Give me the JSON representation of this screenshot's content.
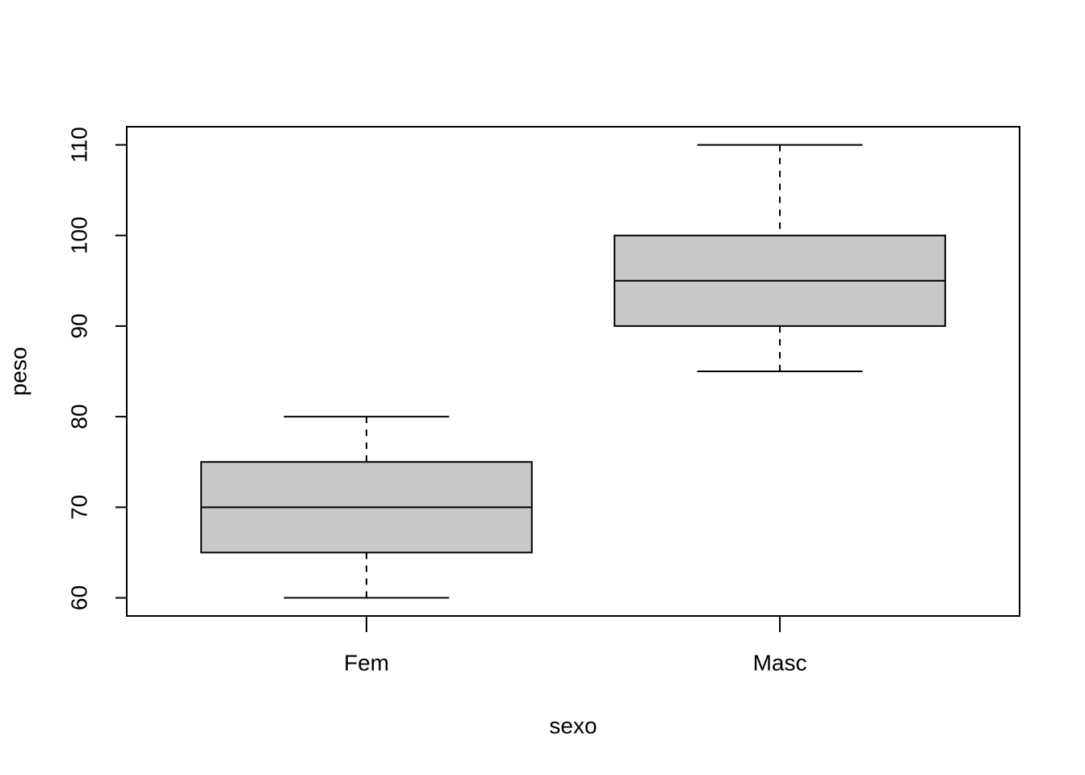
{
  "chart_data": {
    "type": "box",
    "xlabel": "sexo",
    "ylabel": "peso",
    "categories": [
      "Fem",
      "Masc"
    ],
    "min": [
      60,
      85
    ],
    "q1": [
      65,
      90
    ],
    "median": [
      70,
      95
    ],
    "q3": [
      75,
      100
    ],
    "max": [
      80,
      110
    ],
    "color": "#c8c8c8",
    "ylim": [
      58,
      112
    ],
    "yticks": [
      60,
      70,
      80,
      90,
      100,
      110
    ]
  }
}
